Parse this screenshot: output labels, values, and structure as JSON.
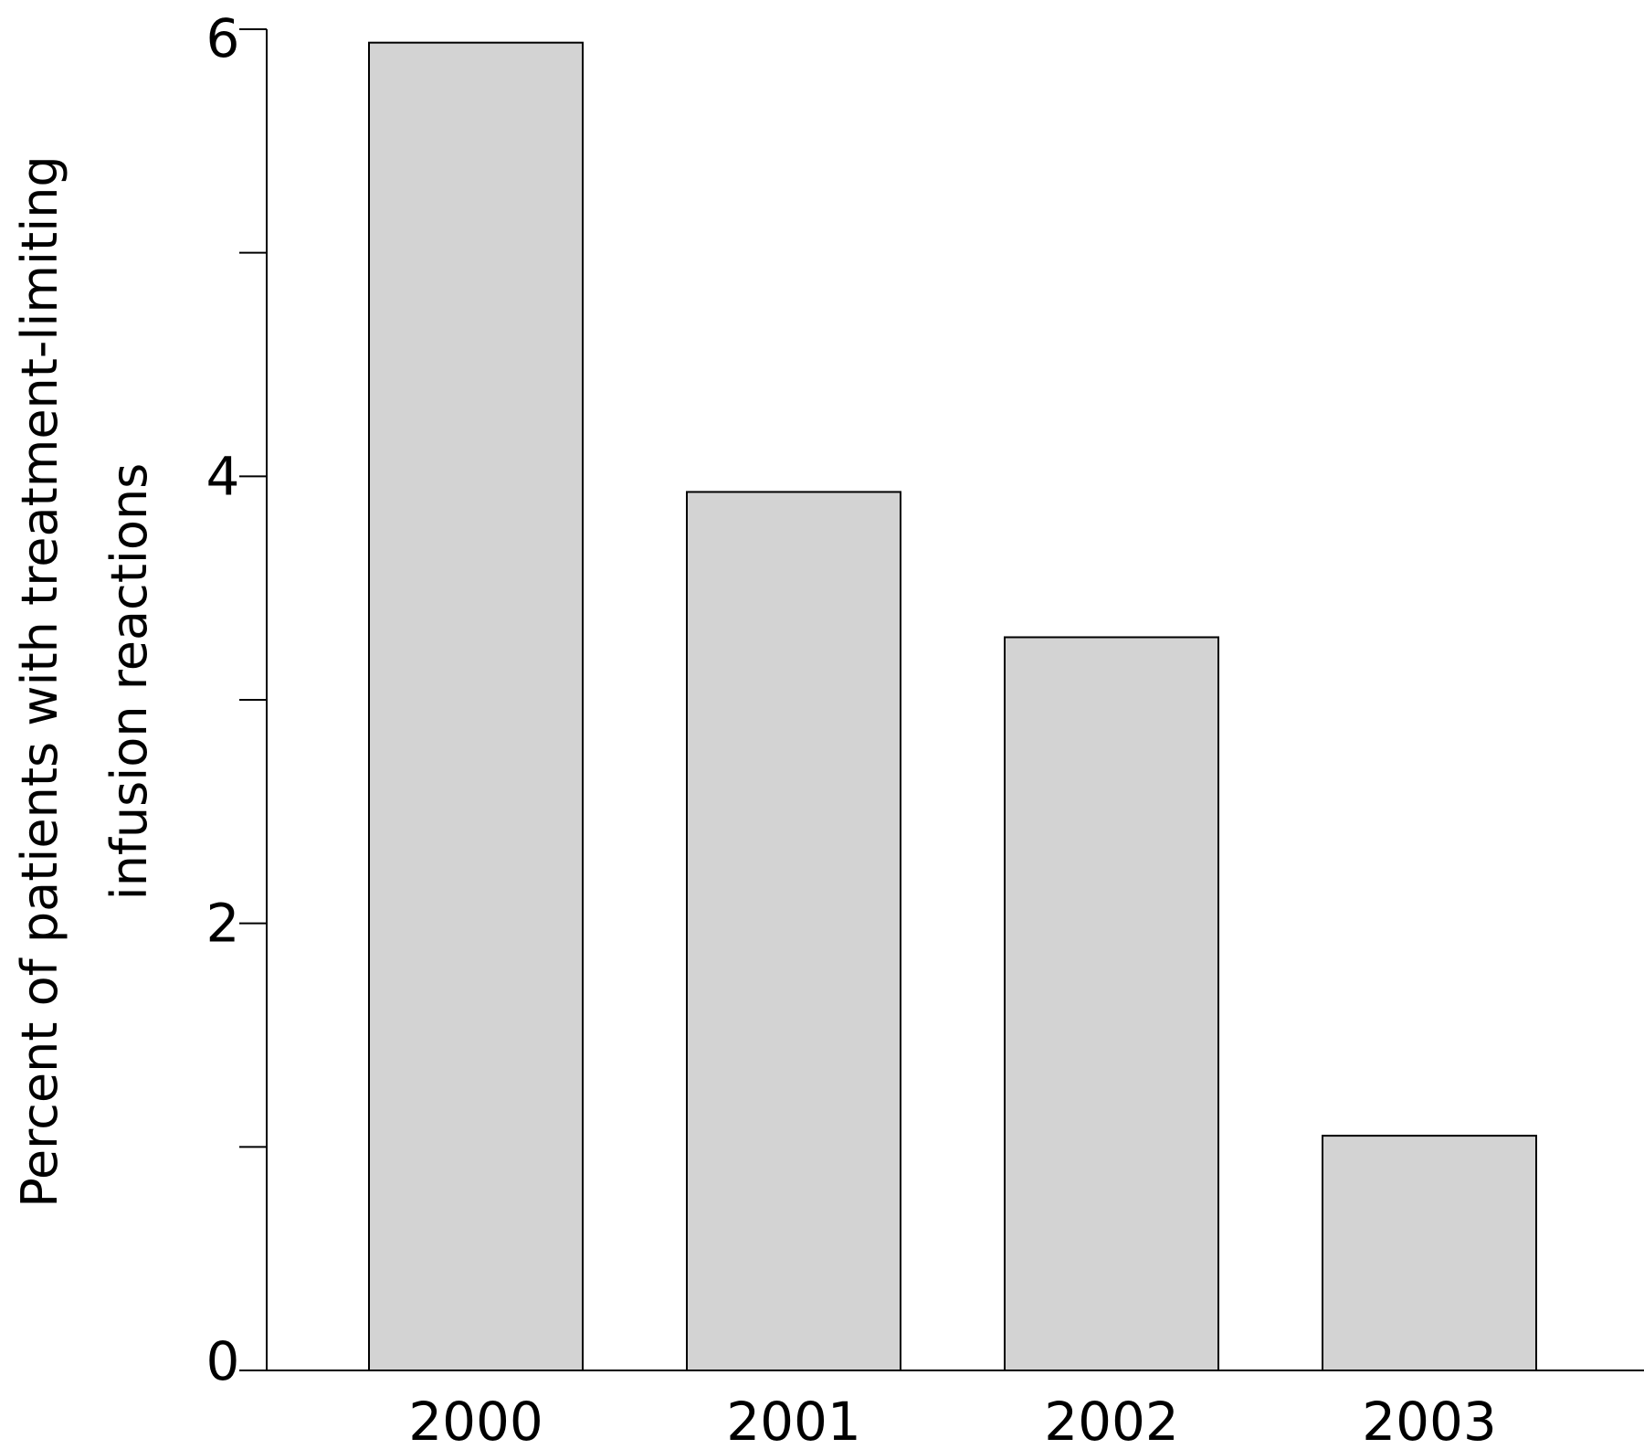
{
  "chart_data": {
    "type": "bar",
    "categories": [
      "2000",
      "2001",
      "2002",
      "2003"
    ],
    "values": [
      5.94,
      3.93,
      3.28,
      1.05
    ],
    "ylabel_lines": [
      "Percent of patients with treatment-limiting",
      "infusion reactions"
    ],
    "xlabel": "",
    "ylim": [
      0,
      6
    ],
    "yticks_labeled": [
      "0",
      "2",
      "4",
      "6"
    ],
    "yticks_minor": [
      1,
      3,
      5
    ],
    "grid": false,
    "legend": "none",
    "bar_color": "#d3d3d3",
    "edge_color": "#000000"
  }
}
